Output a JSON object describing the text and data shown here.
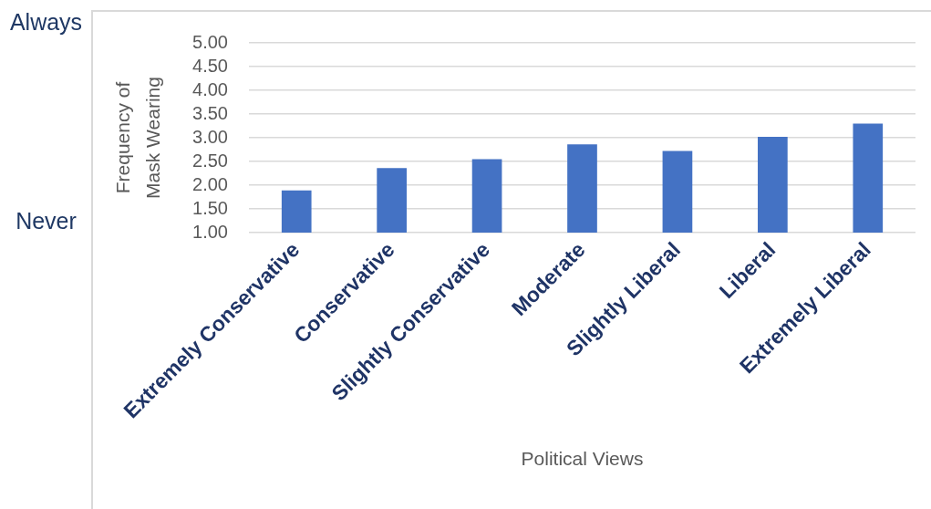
{
  "chart_data": {
    "type": "bar",
    "xlabel": "Political Views",
    "ylabel": "Frequency of Mask Wearing",
    "categories": [
      "Extremely Conservative",
      "Conservative",
      "Slightly Conservative",
      "Moderate",
      "Slightly Liberal",
      "Liberal",
      "Extremely Liberal"
    ],
    "values": [
      1.89,
      2.36,
      2.55,
      2.86,
      2.72,
      3.02,
      3.3
    ],
    "color": "#4472c4",
    "ylim": [
      1,
      5
    ],
    "yticks": [
      {
        "value": 1,
        "label": "1.00"
      },
      {
        "value": 1.5,
        "label": "1.50"
      },
      {
        "value": 2,
        "label": "2.00"
      },
      {
        "value": 2.5,
        "label": "2.50"
      },
      {
        "value": 3,
        "label": "3.00"
      },
      {
        "value": 3.5,
        "label": "3.50"
      },
      {
        "value": 4,
        "label": "4.00"
      },
      {
        "value": 4.5,
        "label": "4.50"
      },
      {
        "value": 5,
        "label": "5.00"
      }
    ],
    "grid": "y",
    "annotations": [
      "Always",
      "Never"
    ]
  }
}
